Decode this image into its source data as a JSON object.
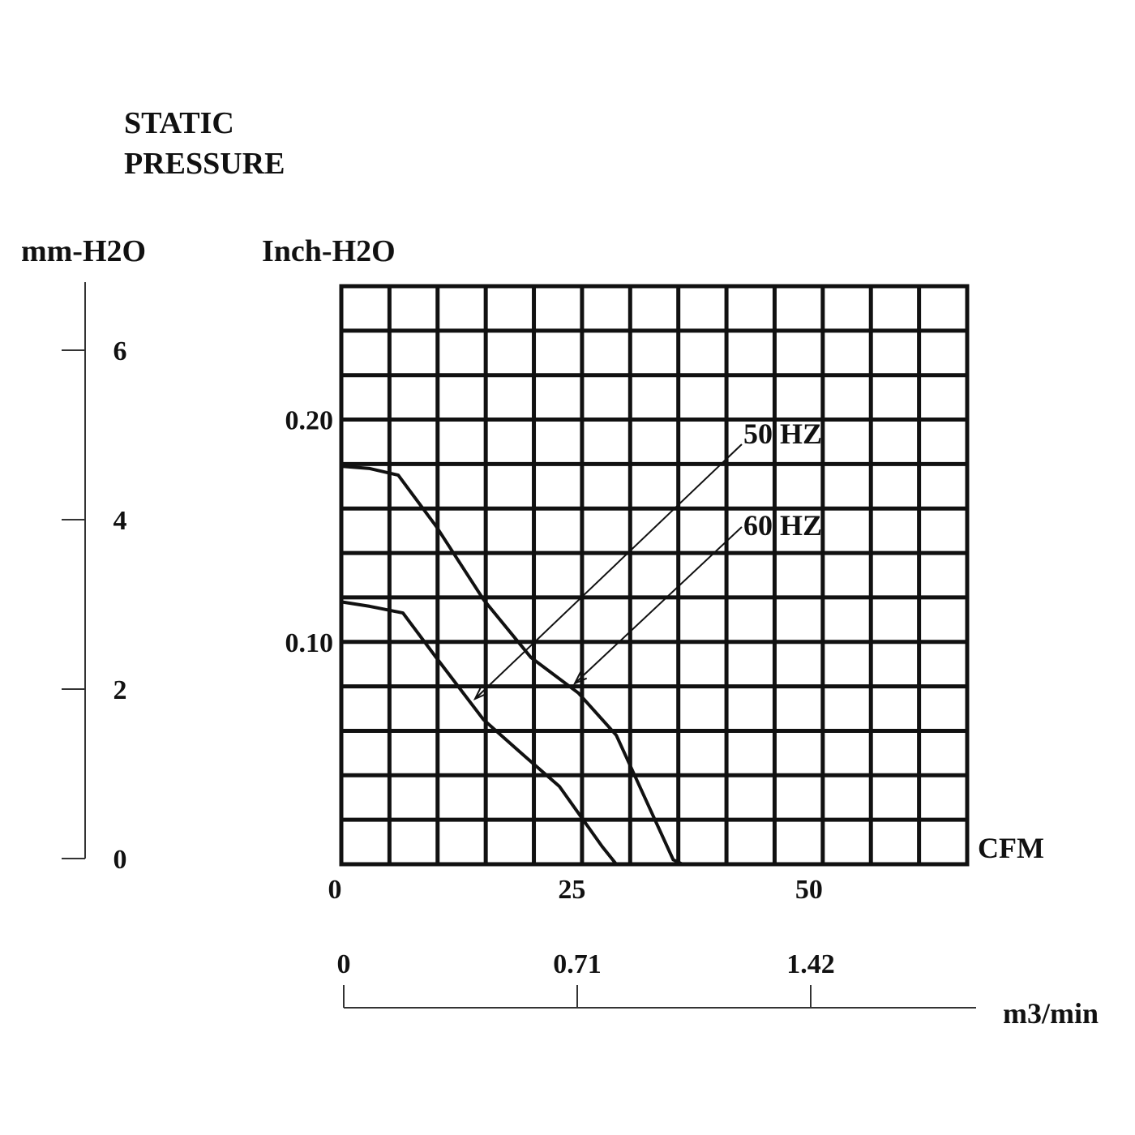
{
  "chart_data": {
    "type": "line",
    "title_lines": [
      "STATIC",
      "PRESSURE"
    ],
    "y_left_unit": "mm-H2O",
    "y_left_ticks": [
      "6",
      "4",
      "2",
      "0"
    ],
    "y_left_tick_values": [
      6,
      4,
      2,
      0
    ],
    "y_right_unit": "Inch-H2O",
    "y_ticks": [
      "0.20",
      "0.10"
    ],
    "y_tick_values": [
      0.2,
      0.1
    ],
    "ylim": [
      0,
      0.26
    ],
    "xlabel": "CFM",
    "x_ticks": [
      "0",
      "25",
      "50"
    ],
    "x_tick_values": [
      0,
      25,
      50
    ],
    "xlim": [
      0,
      66
    ],
    "x2label": "m3/min",
    "x2_ticks": [
      "0",
      "0.71",
      "1.42"
    ],
    "x2_tick_values": [
      0,
      0.71,
      1.42
    ],
    "grid": true,
    "series": [
      {
        "name": "50 HZ",
        "x": [
          0,
          3,
          6,
          10,
          15,
          20,
          25,
          29,
          32,
          35,
          36
        ],
        "y": [
          0.179,
          0.178,
          0.175,
          0.152,
          0.119,
          0.093,
          0.077,
          0.058,
          0.03,
          0.002,
          0.0
        ]
      },
      {
        "name": "60 HZ",
        "x": [
          0,
          3,
          6.5,
          10,
          15,
          19.5,
          23,
          25.5,
          27.5,
          29
        ],
        "y": [
          0.118,
          0.116,
          0.113,
          0.093,
          0.065,
          0.048,
          0.035,
          0.02,
          0.008,
          0.0
        ]
      }
    ]
  }
}
